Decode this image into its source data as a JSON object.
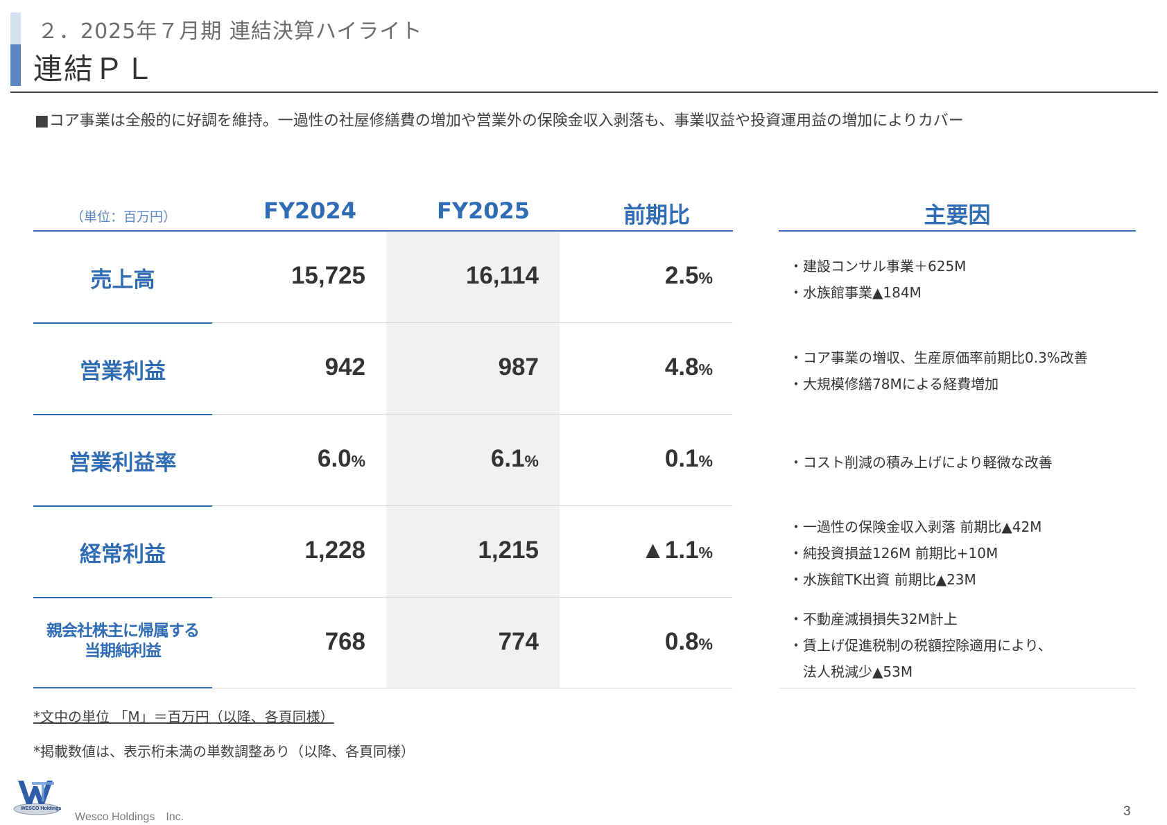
{
  "header": {
    "section_label": "２．2025年７月期 連結決算ハイライト",
    "page_title": "連結ＰＬ"
  },
  "summary": "■コア事業は全般的に好調を維持。一過性の社屋修繕費の増加や営業外の保険金収入剥落も、事業収益や投資運用益の増加によりカバー",
  "table": {
    "unit_label": "（単位：百万円）",
    "columns": [
      "FY2024",
      "FY2025",
      "前期比"
    ],
    "factors_header": "主要因",
    "rows": [
      {
        "label": "売上高",
        "fy2024": "15,725",
        "fy2025": "16,114",
        "yoy": "2.5",
        "yoy_unit": "%",
        "factors": [
          "・建設コンサル事業＋625M",
          "・水族館事業▲184M"
        ]
      },
      {
        "label": "営業利益",
        "fy2024": "942",
        "fy2025": "987",
        "yoy": "4.8",
        "yoy_unit": "%",
        "factors": [
          "・コア事業の増収、生産原価率前期比0.3%改善",
          "・大規模修繕78Mによる経費増加"
        ]
      },
      {
        "label": "営業利益率",
        "fy2024": "6.0",
        "fy2024_unit": "%",
        "fy2025": "6.1",
        "fy2025_unit": "%",
        "yoy": "0.1",
        "yoy_unit": "%",
        "factors": [
          "・コスト削減の積み上げにより軽微な改善"
        ]
      },
      {
        "label": "経常利益",
        "fy2024": "1,228",
        "fy2025": "1,215",
        "yoy": "▲1.1",
        "yoy_unit": "%",
        "factors": [
          "・一過性の保険金収入剥落 前期比▲42M",
          "・純投資損益126M 前期比+10M",
          "・水族館TK出資 前期比▲23M"
        ]
      },
      {
        "label_line1": "親会社株主に帰属する",
        "label_line2": "当期純利益",
        "fy2024": "768",
        "fy2025": "774",
        "yoy": "0.8",
        "yoy_unit": "%",
        "factors": [
          "・不動産減損損失32M計上",
          "・賃上げ促進税制の税額控除適用により、",
          "　法人税減少▲53M"
        ]
      }
    ]
  },
  "notes": [
    "*文中の単位 「M」＝百万円（以降、各頁同様）",
    "*掲載数値は、表示桁未満の単数調整あり（以降、各頁同様）"
  ],
  "footer": {
    "logo_text": "WESCO Holdings",
    "company": "Wesco Holdings　Inc.",
    "page_number": "3"
  },
  "colors": {
    "accent_blue": "#2f6cb3",
    "accent_bar_light": "#d6e1ef",
    "accent_bar_dark": "#5b87c3",
    "shade": "#f1f1f1"
  }
}
